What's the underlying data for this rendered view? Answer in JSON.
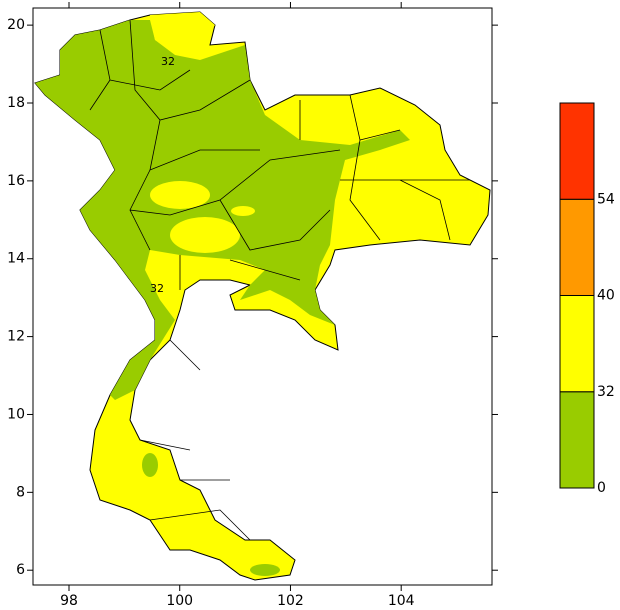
{
  "chart_data": {
    "type": "map",
    "xlim": [
      97.35,
      105.64
    ],
    "ylim": [
      5.62,
      20.44
    ],
    "xticks": [
      98,
      100,
      102,
      104
    ],
    "yticks": [
      6,
      8,
      10,
      12,
      14,
      16,
      18,
      20
    ],
    "contour_labels": [
      "32",
      "32"
    ],
    "legend": {
      "levels": [
        0,
        32,
        40,
        54
      ],
      "colors": [
        "#99cc00",
        "#ffff00",
        "#ff9900",
        "#ff3300"
      ]
    }
  }
}
